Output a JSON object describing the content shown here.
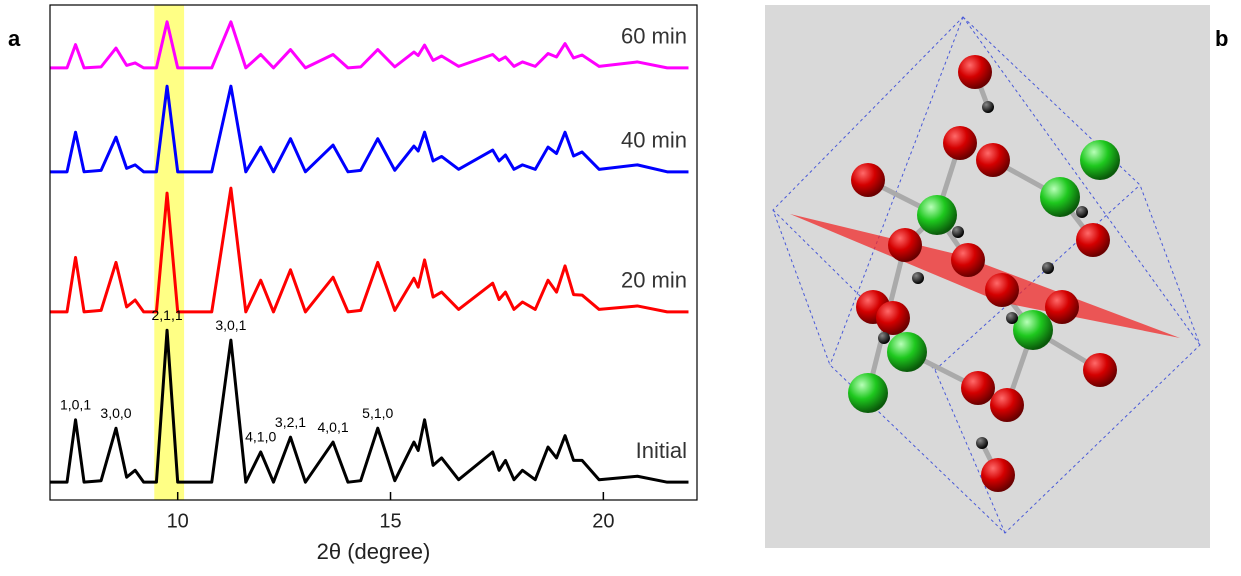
{
  "panel_labels": [
    "a",
    "b"
  ],
  "chart_data": {
    "type": "line",
    "x_label": "2θ (degree)",
    "xlim": [
      7,
      22.2
    ],
    "ylim": [
      0,
      100
    ],
    "xticks": [
      10,
      15,
      20
    ],
    "highlight_range": [
      9.45,
      10.15
    ],
    "highlight_color": "#ffff66",
    "x": [
      7.0,
      7.4,
      7.6,
      7.8,
      8.2,
      8.55,
      8.8,
      9.0,
      9.2,
      9.5,
      9.75,
      10.0,
      10.8,
      11.25,
      11.6,
      11.95,
      12.25,
      12.65,
      13.0,
      13.65,
      14.0,
      14.3,
      14.7,
      15.1,
      15.55,
      15.65,
      15.8,
      16.0,
      16.2,
      16.6,
      17.4,
      17.55,
      17.7,
      17.9,
      18.1,
      18.4,
      18.7,
      18.9,
      19.1,
      19.3,
      19.5,
      19.9,
      20.8,
      21.5,
      22.0
    ],
    "series": [
      {
        "name": "60 min",
        "color": "#ff00ff",
        "values": [
          87.3,
          87.3,
          92,
          87.3,
          87.5,
          91.3,
          87.8,
          88.3,
          87.3,
          87.3,
          96.6,
          87.3,
          87.3,
          96.6,
          87.3,
          90,
          87.3,
          91,
          87.3,
          90,
          87.3,
          87.5,
          91,
          87.5,
          90.5,
          89.8,
          91.9,
          88.8,
          89.7,
          87.6,
          90,
          88.8,
          89.5,
          87.6,
          88.5,
          87.6,
          90.2,
          89.5,
          92.2,
          89.3,
          89.9,
          87.6,
          88.5,
          87.3,
          87.3
        ]
      },
      {
        "name": "40 min",
        "color": "#0000ff",
        "values": [
          66.3,
          66.3,
          74.3,
          66.3,
          66.6,
          73.3,
          67,
          67.7,
          66.3,
          66.3,
          83.6,
          66.3,
          66.3,
          83.6,
          66.3,
          71.3,
          66.3,
          73,
          66.3,
          71.7,
          66.3,
          66.6,
          73,
          66.6,
          71.5,
          70.5,
          74.3,
          68.5,
          69.4,
          66.8,
          70.7,
          68.5,
          69.7,
          66.8,
          67.7,
          66.8,
          71.3,
          70,
          74.3,
          69.5,
          70.3,
          66.8,
          67.7,
          66.3,
          66.3
        ]
      },
      {
        "name": "20 min",
        "color": "#ff0000",
        "values": [
          38,
          38,
          49,
          38,
          38.3,
          48,
          39,
          40.4,
          38,
          38,
          62,
          38,
          38,
          63,
          38,
          44.4,
          38,
          46.5,
          38,
          45,
          38,
          38.3,
          48,
          38.3,
          44.8,
          43,
          48.5,
          41,
          42,
          38.5,
          43.8,
          40.5,
          42,
          38.5,
          40,
          38.5,
          44.4,
          42,
          47.3,
          41.5,
          41.4,
          38.5,
          39.2,
          38,
          38
        ]
      },
      {
        "name": "Initial",
        "color": "#000000",
        "values": [
          3.6,
          3.6,
          16.2,
          3.6,
          3.9,
          14.5,
          4.6,
          6,
          3.6,
          3.6,
          34.3,
          3.6,
          3.6,
          32.3,
          3.6,
          9.7,
          3.6,
          12.7,
          3.6,
          11.7,
          3.6,
          3.9,
          14.5,
          3.9,
          11.7,
          10,
          16.2,
          7,
          8.5,
          4.1,
          9.7,
          6,
          8,
          4.1,
          6,
          4.1,
          10.7,
          8.5,
          13,
          8,
          8,
          4.1,
          4.8,
          3.6,
          3.6
        ]
      }
    ],
    "peak_labels": {
      "x": [
        7.6,
        8.55,
        9.75,
        11.25,
        11.95,
        12.65,
        13.65,
        14.7
      ],
      "labels": [
        "1,0,1",
        "3,0,0",
        "2,1,1",
        "3,0,1",
        "4,1,0",
        "3,2,1",
        "4,0,1",
        "5,1,0"
      ]
    }
  }
}
